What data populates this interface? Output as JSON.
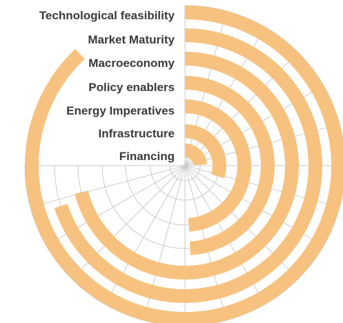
{
  "chart_data": {
    "type": "radial-bar",
    "title": "",
    "categories": [
      "Technological feasibility",
      "Market Maturity",
      "Macroeconomy",
      "Policy enablers",
      "Energy Imperatives",
      "Infrastructure",
      "Financing"
    ],
    "values": [
      0.88,
      0.7,
      0.71,
      0.49,
      0.49,
      0.3,
      0.24
    ],
    "value_unit": "fraction of full circle",
    "grid": true,
    "colors": {
      "bar": "#f7c27f",
      "grid": "#c9c9c9",
      "label": "#3a3a3a"
    }
  }
}
